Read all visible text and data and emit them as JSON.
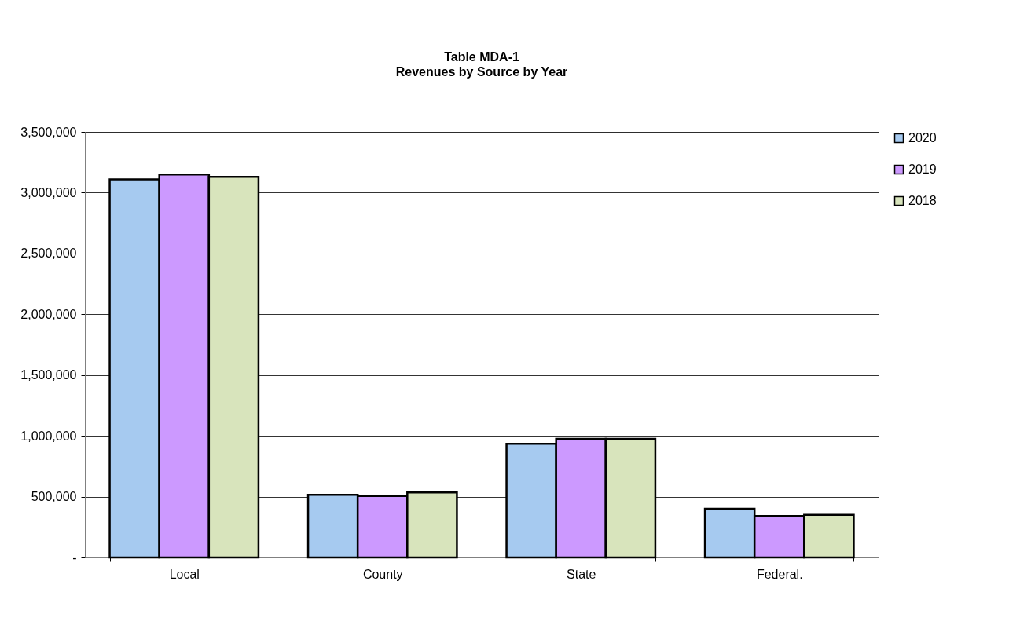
{
  "chart_data": {
    "type": "bar",
    "title": "Table MDA-1",
    "subtitle": "Revenues by Source by Year",
    "categories": [
      "Local",
      "County",
      "State",
      "Federal."
    ],
    "series": [
      {
        "name": "2020",
        "color": "#a6caf0",
        "values": [
          3110000,
          515000,
          935000,
          400000
        ]
      },
      {
        "name": "2019",
        "color": "#cc99ff",
        "values": [
          3150000,
          505000,
          975000,
          340000
        ]
      },
      {
        "name": "2018",
        "color": "#d8e4bc",
        "values": [
          3130000,
          535000,
          975000,
          350000
        ]
      }
    ],
    "ylim": [
      0,
      3500000
    ],
    "yticks": [
      {
        "value": 0,
        "label": "-"
      },
      {
        "value": 500000,
        "label": "500,000"
      },
      {
        "value": 1000000,
        "label": "1,000,000"
      },
      {
        "value": 1500000,
        "label": "1,500,000"
      },
      {
        "value": 2000000,
        "label": "2,000,000"
      },
      {
        "value": 2500000,
        "label": "2,500,000"
      },
      {
        "value": 3000000,
        "label": "3,000,000"
      },
      {
        "value": 3500000,
        "label": "3,500,000"
      }
    ],
    "grid": "y",
    "legend": "right"
  }
}
